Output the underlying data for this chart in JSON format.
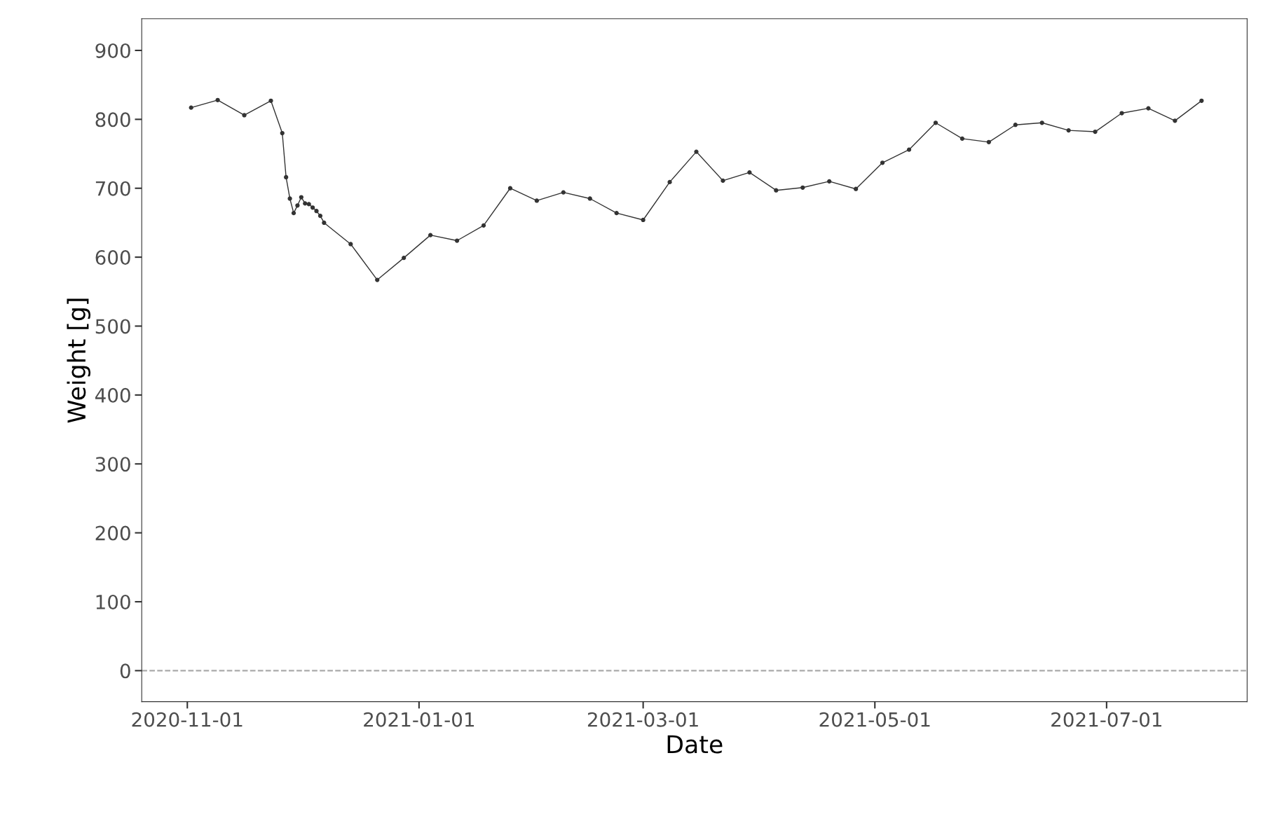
{
  "chart_data": {
    "type": "line",
    "xlabel": "Date",
    "ylabel": "Weight [g]",
    "x": [
      "2020-11-02",
      "2020-11-09",
      "2020-11-16",
      "2020-11-23",
      "2020-11-26",
      "2020-11-27",
      "2020-11-28",
      "2020-11-29",
      "2020-11-30",
      "2020-12-01",
      "2020-12-02",
      "2020-12-03",
      "2020-12-04",
      "2020-12-05",
      "2020-12-06",
      "2020-12-07",
      "2020-12-14",
      "2020-12-21",
      "2020-12-28",
      "2021-01-04",
      "2021-01-11",
      "2021-01-18",
      "2021-01-25",
      "2021-02-01",
      "2021-02-08",
      "2021-02-15",
      "2021-02-22",
      "2021-03-01",
      "2021-03-08",
      "2021-03-15",
      "2021-03-22",
      "2021-03-29",
      "2021-04-05",
      "2021-04-12",
      "2021-04-19",
      "2021-04-26",
      "2021-05-03",
      "2021-05-10",
      "2021-05-17",
      "2021-05-24",
      "2021-05-31",
      "2021-06-07",
      "2021-06-14",
      "2021-06-21",
      "2021-06-28",
      "2021-07-05",
      "2021-07-12",
      "2021-07-19",
      "2021-07-26"
    ],
    "series": [
      {
        "color": "#333333",
        "values": [
          817,
          828,
          806,
          827,
          780,
          716,
          685,
          664,
          675,
          687,
          678,
          677,
          672,
          667,
          660,
          650,
          619,
          567,
          599,
          632,
          624,
          646,
          700,
          682,
          694,
          685,
          664,
          654,
          709,
          753,
          711,
          723,
          697,
          701,
          710,
          699,
          737,
          756,
          795,
          772,
          767,
          792,
          795,
          784,
          782,
          809,
          816,
          798,
          827
        ]
      }
    ],
    "xlim": [
      "2020-10-20",
      "2021-08-07"
    ],
    "ylim": [
      -45,
      946
    ],
    "xticks": [
      "2020-11-01",
      "2021-01-01",
      "2021-03-01",
      "2021-05-01",
      "2021-07-01"
    ],
    "yticks": [
      0,
      100,
      200,
      300,
      400,
      500,
      600,
      700,
      800,
      900
    ],
    "ref_lines": [
      {
        "axis": "y",
        "value": 0,
        "color": "#aaaaaa",
        "line_style": "dashed"
      }
    ],
    "marker": "circle",
    "line_style": "solid",
    "grid": false,
    "legend": false
  }
}
